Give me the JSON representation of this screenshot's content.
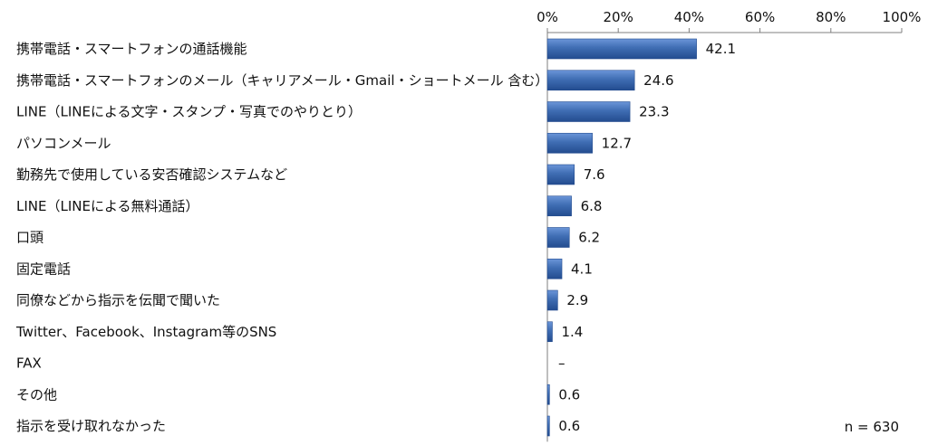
{
  "chart_data": {
    "type": "bar",
    "orientation": "horizontal",
    "categories": [
      "携帯電話・スマートフォンの通話機能",
      "携帯電話・スマートフォンのメール（キャリアメール・Gmail・ショートメール 含む）",
      "LINE（LINEによる文字・スタンプ・写真でのやりとり）",
      "パソコンメール",
      "勤務先で使用している安否確認システムなど",
      "LINE（LINEによる無料通話）",
      "口頭",
      "固定電話",
      "同僚などから指示を伝聞で聞いた",
      "Twitter、Facebook、Instagram等のSNS",
      "FAX",
      "その他",
      "指示を受け取れなかった"
    ],
    "values": [
      42.1,
      24.6,
      23.3,
      12.7,
      7.6,
      6.8,
      6.2,
      4.1,
      2.9,
      1.4,
      0,
      0.6,
      0.6
    ],
    "value_labels": [
      "42.1",
      "24.6",
      "23.3",
      "12.7",
      "7.6",
      "6.8",
      "6.2",
      "4.1",
      "2.9",
      "1.4",
      "–",
      "0.6",
      "0.6"
    ],
    "xlim": [
      0,
      100
    ],
    "ticks": [
      "0%",
      "20%",
      "40%",
      "60%",
      "80%",
      "100%"
    ],
    "tick_values": [
      0,
      20,
      40,
      60,
      80,
      100
    ],
    "axis_position": "top",
    "grid": false,
    "bar_color": "#3f6db3",
    "bar_color_light": "#6b95d8",
    "bar_color_dark": "#234c8f",
    "note": "n = 630"
  }
}
